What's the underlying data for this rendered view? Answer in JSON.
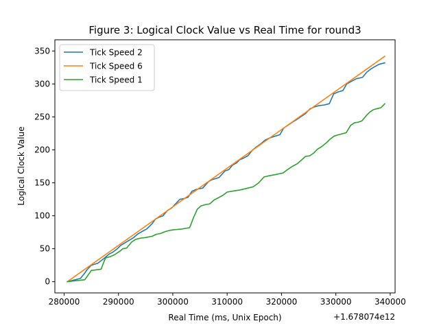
{
  "chart_data": {
    "type": "line",
    "title": "Figure 3: Logical Clock Value vs Real Time for round3",
    "xlabel": "Real Time (ms, Unix Epoch)",
    "ylabel": "Logical Clock Value",
    "x_offset_label": "+1.678074e12",
    "xlim": [
      278300,
      340900
    ],
    "ylim": [
      -17,
      367
    ],
    "x_ticks": [
      280000,
      290000,
      300000,
      310000,
      320000,
      330000,
      340000
    ],
    "x_tick_labels": [
      "280000",
      "290000",
      "300000",
      "310000",
      "320000",
      "330000",
      "340000"
    ],
    "y_ticks": [
      0,
      50,
      100,
      150,
      200,
      250,
      300,
      350
    ],
    "y_tick_labels": [
      "0",
      "50",
      "100",
      "150",
      "200",
      "250",
      "300",
      "350"
    ],
    "grid": false,
    "legend": "top-left",
    "series": [
      {
        "name": "Tick Speed 2",
        "color": "#1f77b4",
        "x": [
          280600,
          283000,
          283700,
          284200,
          285000,
          286200,
          287300,
          288300,
          289000,
          289800,
          290400,
          291000,
          292000,
          292800,
          293500,
          294300,
          295200,
          296200,
          296800,
          297500,
          298200,
          299000,
          299800,
          300500,
          301300,
          302000,
          302800,
          303500,
          304300,
          305500,
          306600,
          307300,
          308500,
          309600,
          310300,
          311000,
          311700,
          312300,
          312900,
          313800,
          314700,
          315300,
          316300,
          317000,
          317800,
          318900,
          319700,
          320400,
          321100,
          322000,
          322800,
          323500,
          324400,
          325200,
          326000,
          326800,
          327800,
          328800,
          329600,
          330500,
          331300,
          332000,
          333100,
          333800,
          334900,
          335700,
          336500,
          337100,
          338000,
          339000
        ],
        "y": [
          0,
          5,
          12,
          18,
          25,
          28,
          35,
          42,
          45,
          50,
          55,
          58,
          63,
          67,
          72,
          76,
          80,
          88,
          95,
          98,
          100,
          108,
          112,
          118,
          125,
          126,
          128,
          137,
          140,
          142,
          152,
          155,
          158,
          168,
          170,
          177,
          180,
          185,
          187,
          191,
          200,
          204,
          210,
          215,
          218,
          221,
          223,
          233,
          237,
          242,
          246,
          250,
          255,
          262,
          265,
          267,
          268,
          270,
          285,
          288,
          290,
          300,
          305,
          308,
          310,
          318,
          323,
          326,
          330,
          332
        ]
      },
      {
        "name": "Tick Speed 6",
        "color": "#ff7f0e",
        "x": [
          280600,
          339000
        ],
        "y": [
          0,
          342
        ]
      },
      {
        "name": "Tick Speed 1",
        "color": "#2ca02c",
        "x": [
          280600,
          283800,
          285000,
          286800,
          287600,
          288500,
          289300,
          290200,
          290800,
          291500,
          292400,
          293100,
          294000,
          295000,
          296200,
          297000,
          297700,
          298600,
          299500,
          300500,
          301700,
          303100,
          303800,
          304500,
          305200,
          306000,
          306800,
          307600,
          308300,
          309200,
          310000,
          311400,
          312300,
          313800,
          314800,
          315800,
          316800,
          317900,
          319200,
          320300,
          321100,
          322000,
          322900,
          323600,
          324400,
          325200,
          325900,
          326600,
          327400,
          328300,
          328900,
          329700,
          330500,
          331000,
          331900,
          332700,
          333400,
          334100,
          334800,
          335600,
          336200,
          336900,
          337800,
          338300,
          339000
        ],
        "y": [
          0,
          3,
          17,
          19,
          36,
          38,
          41,
          46,
          50,
          51,
          60,
          64,
          66,
          67,
          69,
          72,
          73,
          76,
          78,
          79,
          80,
          82,
          97,
          110,
          115,
          117,
          118,
          124,
          127,
          131,
          136,
          138,
          139,
          142,
          144,
          150,
          159,
          161,
          163,
          165,
          170,
          175,
          179,
          184,
          190,
          191,
          195,
          201,
          205,
          211,
          216,
          221,
          223,
          224,
          226,
          237,
          241,
          242,
          244,
          252,
          257,
          261,
          263,
          264,
          270
        ]
      }
    ]
  }
}
